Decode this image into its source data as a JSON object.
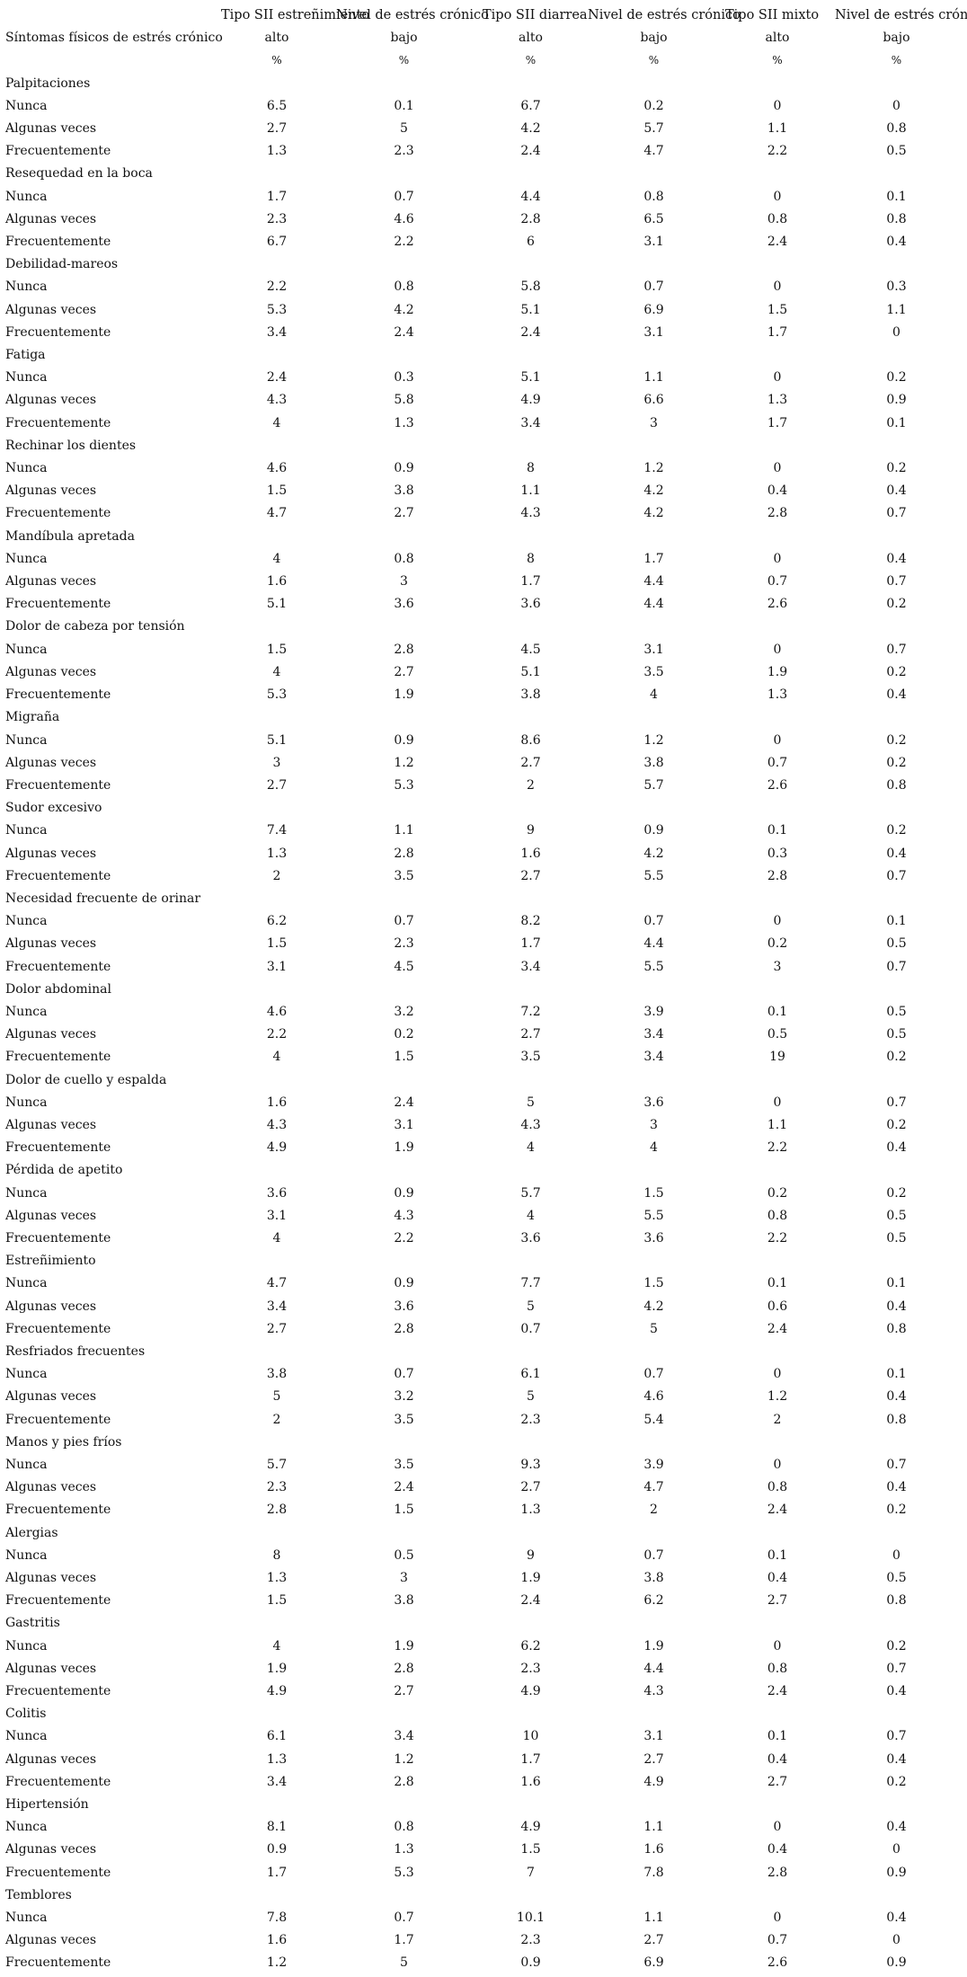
{
  "header": {
    "groups": [
      "Tipo SII estreñimiento",
      "Nivel de estrés crónico",
      "Tipo SII diarrea",
      "Nivel de estrés crónico",
      "Tipo SII mixto",
      "Nivel de estrés crónico"
    ],
    "row_label": "Síntomas físicos de estrés crónico",
    "levels": [
      "alto",
      "bajo",
      "alto",
      "bajo",
      "alto",
      "bajo"
    ],
    "units": [
      "%",
      "%",
      "%",
      "%",
      "%",
      "%"
    ]
  },
  "sections": [
    {
      "title": "Palpitaciones",
      "rows": [
        {
          "label": "Nunca",
          "values": [
            "6.5",
            "0.1",
            "6.7",
            "0.2",
            "0",
            "0"
          ]
        },
        {
          "label": "Algunas veces",
          "values": [
            "2.7",
            "5",
            "4.2",
            "5.7",
            "1.1",
            "0.8"
          ]
        },
        {
          "label": "Frecuentemente",
          "values": [
            "1.3",
            "2.3",
            "2.4",
            "4.7",
            "2.2",
            "0.5"
          ]
        }
      ]
    },
    {
      "title": "Resequedad en la boca",
      "rows": [
        {
          "label": "Nunca",
          "values": [
            "1.7",
            "0.7",
            "4.4",
            "0.8",
            "0",
            "0.1"
          ]
        },
        {
          "label": "Algunas veces",
          "values": [
            "2.3",
            "4.6",
            "2.8",
            "6.5",
            "0.8",
            "0.8"
          ]
        },
        {
          "label": "Frecuentemente",
          "values": [
            "6.7",
            "2.2",
            "6",
            "3.1",
            "2.4",
            "0.4"
          ]
        }
      ]
    },
    {
      "title": "Debilidad-mareos",
      "rows": [
        {
          "label": "Nunca",
          "values": [
            "2.2",
            "0.8",
            "5.8",
            "0.7",
            "0",
            "0.3"
          ]
        },
        {
          "label": "Algunas veces",
          "values": [
            "5.3",
            "4.2",
            "5.1",
            "6.9",
            "1.5",
            "1.1"
          ]
        },
        {
          "label": "Frecuentemente",
          "values": [
            "3.4",
            "2.4",
            "2.4",
            "3.1",
            "1.7",
            "0"
          ]
        }
      ]
    },
    {
      "title": "Fatiga",
      "rows": [
        {
          "label": "Nunca",
          "values": [
            "2.4",
            "0.3",
            "5.1",
            "1.1",
            "0",
            "0.2"
          ]
        },
        {
          "label": "Algunas veces",
          "values": [
            "4.3",
            "5.8",
            "4.9",
            "6.6",
            "1.3",
            "0.9"
          ]
        },
        {
          "label": "Frecuentemente",
          "values": [
            "4",
            "1.3",
            "3.4",
            "3",
            "1.7",
            "0.1"
          ]
        }
      ]
    },
    {
      "title": "Rechinar los dientes",
      "rows": [
        {
          "label": "Nunca",
          "values": [
            "4.6",
            "0.9",
            "8",
            "1.2",
            "0",
            "0.2"
          ]
        },
        {
          "label": "Algunas veces",
          "values": [
            "1.5",
            "3.8",
            "1.1",
            "4.2",
            "0.4",
            "0.4"
          ]
        },
        {
          "label": "Frecuentemente",
          "values": [
            "4.7",
            "2.7",
            "4.3",
            "4.2",
            "2.8",
            "0.7"
          ]
        }
      ]
    },
    {
      "title": "Mandíbula apretada",
      "rows": [
        {
          "label": "Nunca",
          "values": [
            "4",
            "0.8",
            "8",
            "1.7",
            "0",
            "0.4"
          ]
        },
        {
          "label": "Algunas veces",
          "values": [
            "1.6",
            "3",
            "1.7",
            "4.4",
            "0.7",
            "0.7"
          ]
        },
        {
          "label": "Frecuentemente",
          "values": [
            "5.1",
            "3.6",
            "3.6",
            "4.4",
            "2.6",
            "0.2"
          ]
        }
      ]
    },
    {
      "title": "Dolor de cabeza por tensión",
      "rows": [
        {
          "label": "Nunca",
          "values": [
            "1.5",
            "2.8",
            "4.5",
            "3.1",
            "0",
            "0.7"
          ]
        },
        {
          "label": "Algunas veces",
          "values": [
            "4",
            "2.7",
            "5.1",
            "3.5",
            "1.9",
            "0.2"
          ]
        },
        {
          "label": "Frecuentemente",
          "values": [
            "5.3",
            "1.9",
            "3.8",
            "4",
            "1.3",
            "0.4"
          ]
        }
      ]
    },
    {
      "title": "Migraña",
      "rows": [
        {
          "label": "Nunca",
          "values": [
            "5.1",
            "0.9",
            "8.6",
            "1.2",
            "0",
            "0.2"
          ]
        },
        {
          "label": "Algunas veces",
          "values": [
            "3",
            "1.2",
            "2.7",
            "3.8",
            "0.7",
            "0.2"
          ]
        },
        {
          "label": "Frecuentemente",
          "values": [
            "2.7",
            "5.3",
            "2",
            "5.7",
            "2.6",
            "0.8"
          ]
        }
      ]
    },
    {
      "title": "Sudor excesivo",
      "rows": [
        {
          "label": "Nunca",
          "values": [
            "7.4",
            "1.1",
            "9",
            "0.9",
            "0.1",
            "0.2"
          ]
        },
        {
          "label": "Algunas veces",
          "values": [
            "1.3",
            "2.8",
            "1.6",
            "4.2",
            "0.3",
            "0.4"
          ]
        },
        {
          "label": "Frecuentemente",
          "values": [
            "2",
            "3.5",
            "2.7",
            "5.5",
            "2.8",
            "0.7"
          ]
        }
      ]
    },
    {
      "title": "Necesidad frecuente de orinar",
      "rows": [
        {
          "label": "Nunca",
          "values": [
            "6.2",
            "0.7",
            "8.2",
            "0.7",
            "0",
            "0.1"
          ]
        },
        {
          "label": "Algunas veces",
          "values": [
            "1.5",
            "2.3",
            "1.7",
            "4.4",
            "0.2",
            "0.5"
          ]
        },
        {
          "label": "Frecuentemente",
          "values": [
            "3.1",
            "4.5",
            "3.4",
            "5.5",
            "3",
            "0.7"
          ]
        }
      ]
    },
    {
      "title": "Dolor abdominal",
      "rows": [
        {
          "label": "Nunca",
          "values": [
            "4.6",
            "3.2",
            "7.2",
            "3.9",
            "0.1",
            "0.5"
          ]
        },
        {
          "label": "Algunas veces",
          "values": [
            "2.2",
            "0.2",
            "2.7",
            "3.4",
            "0.5",
            "0.5"
          ]
        },
        {
          "label": "Frecuentemente",
          "values": [
            "4",
            "1.5",
            "3.5",
            "3.4",
            "19",
            "0.2"
          ]
        }
      ]
    },
    {
      "title": "Dolor de cuello y espalda",
      "rows": [
        {
          "label": "Nunca",
          "values": [
            "1.6",
            "2.4",
            "5",
            "3.6",
            "0",
            "0.7"
          ]
        },
        {
          "label": "Algunas veces",
          "values": [
            "4.3",
            "3.1",
            "4.3",
            "3",
            "1.1",
            "0.2"
          ]
        },
        {
          "label": "Frecuentemente",
          "values": [
            "4.9",
            "1.9",
            "4",
            "4",
            "2.2",
            "0.4"
          ]
        }
      ]
    },
    {
      "title": "Pérdida de apetito",
      "rows": [
        {
          "label": "Nunca",
          "values": [
            "3.6",
            "0.9",
            "5.7",
            "1.5",
            "0.2",
            "0.2"
          ]
        },
        {
          "label": "Algunas veces",
          "values": [
            "3.1",
            "4.3",
            "4",
            "5.5",
            "0.8",
            "0.5"
          ]
        },
        {
          "label": "Frecuentemente",
          "values": [
            "4",
            "2.2",
            "3.6",
            "3.6",
            "2.2",
            "0.5"
          ]
        }
      ]
    },
    {
      "title": "Estreñimiento",
      "rows": [
        {
          "label": "Nunca",
          "values": [
            "4.7",
            "0.9",
            "7.7",
            "1.5",
            "0.1",
            "0.1"
          ]
        },
        {
          "label": "Algunas veces",
          "values": [
            "3.4",
            "3.6",
            "5",
            "4.2",
            "0.6",
            "0.4"
          ]
        },
        {
          "label": "Frecuentemente",
          "values": [
            "2.7",
            "2.8",
            "0.7",
            "5",
            "2.4",
            "0.8"
          ]
        }
      ]
    },
    {
      "title": "Resfriados frecuentes",
      "rows": [
        {
          "label": "Nunca",
          "values": [
            "3.8",
            "0.7",
            "6.1",
            "0.7",
            "0",
            "0.1"
          ]
        },
        {
          "label": "Algunas veces",
          "values": [
            "5",
            "3.2",
            "5",
            "4.6",
            "1.2",
            "0.4"
          ]
        },
        {
          "label": "Frecuentemente",
          "values": [
            "2",
            "3.5",
            "2.3",
            "5.4",
            "2",
            "0.8"
          ]
        }
      ]
    },
    {
      "title": "Manos y pies fríos",
      "rows": [
        {
          "label": "Nunca",
          "values": [
            "5.7",
            "3.5",
            "9.3",
            "3.9",
            "0",
            "0.7"
          ]
        },
        {
          "label": "Algunas veces",
          "values": [
            "2.3",
            "2.4",
            "2.7",
            "4.7",
            "0.8",
            "0.4"
          ]
        },
        {
          "label": "Frecuentemente",
          "values": [
            "2.8",
            "1.5",
            "1.3",
            "2",
            "2.4",
            "0.2"
          ]
        }
      ]
    },
    {
      "title": "Alergias",
      "rows": [
        {
          "label": "Nunca",
          "values": [
            "8",
            "0.5",
            "9",
            "0.7",
            "0.1",
            "0"
          ]
        },
        {
          "label": "Algunas veces",
          "values": [
            "1.3",
            "3",
            "1.9",
            "3.8",
            "0.4",
            "0.5"
          ]
        },
        {
          "label": "Frecuentemente",
          "values": [
            "1.5",
            "3.8",
            "2.4",
            "6.2",
            "2.7",
            "0.8"
          ]
        }
      ]
    },
    {
      "title": "Gastritis",
      "rows": [
        {
          "label": "Nunca",
          "values": [
            "4",
            "1.9",
            "6.2",
            "1.9",
            "0",
            "0.2"
          ]
        },
        {
          "label": "Algunas veces",
          "values": [
            "1.9",
            "2.8",
            "2.3",
            "4.4",
            "0.8",
            "0.7"
          ]
        },
        {
          "label": "Frecuentemente",
          "values": [
            "4.9",
            "2.7",
            "4.9",
            "4.3",
            "2.4",
            "0.4"
          ]
        }
      ]
    },
    {
      "title": "Colitis",
      "rows": [
        {
          "label": "Nunca",
          "values": [
            "6.1",
            "3.4",
            "10",
            "3.1",
            "0.1",
            "0.7"
          ]
        },
        {
          "label": "Algunas veces",
          "values": [
            "1.3",
            "1.2",
            "1.7",
            "2.7",
            "0.4",
            "0.4"
          ]
        },
        {
          "label": "Frecuentemente",
          "values": [
            "3.4",
            "2.8",
            "1.6",
            "4.9",
            "2.7",
            "0.2"
          ]
        }
      ]
    },
    {
      "title": "Hipertensión",
      "rows": [
        {
          "label": "Nunca",
          "values": [
            "8.1",
            "0.8",
            "4.9",
            "1.1",
            "0",
            "0.4"
          ]
        },
        {
          "label": "Algunas veces",
          "values": [
            "0.9",
            "1.3",
            "1.5",
            "1.6",
            "0.4",
            "0"
          ]
        },
        {
          "label": "Frecuentemente",
          "values": [
            "1.7",
            "5.3",
            "7",
            "7.8",
            "2.8",
            "0.9"
          ]
        }
      ]
    },
    {
      "title": "Temblores",
      "rows": [
        {
          "label": "Nunca",
          "values": [
            "7.8",
            "0.7",
            "10.1",
            "1.1",
            "0",
            "0.4"
          ]
        },
        {
          "label": "Algunas veces",
          "values": [
            "1.6",
            "1.7",
            "2.3",
            "2.7",
            "0.7",
            "0"
          ]
        },
        {
          "label": "Frecuentemente",
          "values": [
            "1.2",
            "5",
            "0.9",
            "6.9",
            "2.6",
            "0.9"
          ]
        }
      ]
    }
  ]
}
